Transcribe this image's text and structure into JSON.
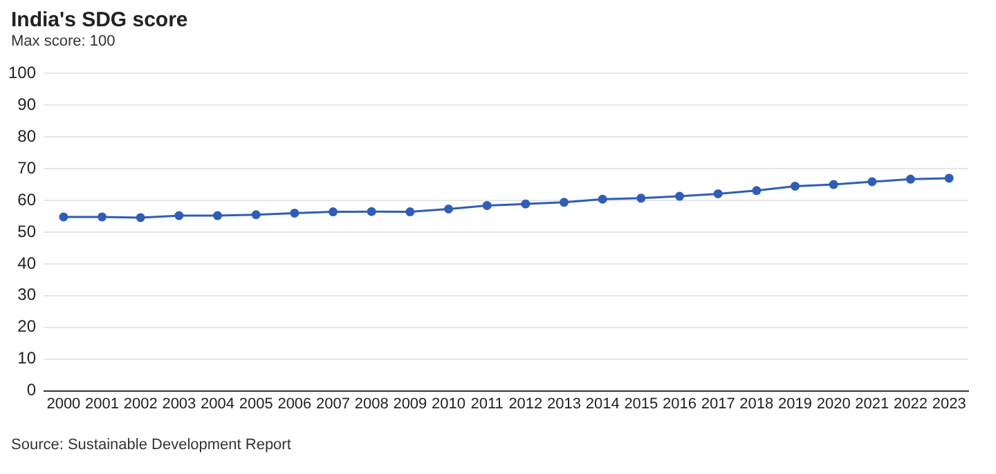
{
  "chart_data": {
    "type": "line",
    "title": "India's SDG score",
    "subtitle": "Max score: 100",
    "categories": [
      "2000",
      "2001",
      "2002",
      "2003",
      "2004",
      "2005",
      "2006",
      "2007",
      "2008",
      "2009",
      "2010",
      "2011",
      "2012",
      "2013",
      "2014",
      "2015",
      "2016",
      "2017",
      "2018",
      "2019",
      "2020",
      "2021",
      "2022",
      "2023"
    ],
    "series": [
      {
        "color": "#2f5eb5",
        "values": [
          54.8,
          54.8,
          54.6,
          55.2,
          55.2,
          55.5,
          56.0,
          56.4,
          56.5,
          56.4,
          57.3,
          58.4,
          58.9,
          59.4,
          60.4,
          60.7,
          61.3,
          62.1,
          63.1,
          64.5,
          65.0,
          65.9,
          66.7,
          67.0
        ]
      }
    ],
    "ylim": [
      0,
      100
    ],
    "yticks": [
      0,
      10,
      20,
      30,
      40,
      50,
      60,
      70,
      80,
      90,
      100
    ],
    "grid": "y",
    "legend": false,
    "marker": "circle",
    "line_style": "solid",
    "annotations": [
      "Source: Sustainable Development Report"
    ]
  }
}
